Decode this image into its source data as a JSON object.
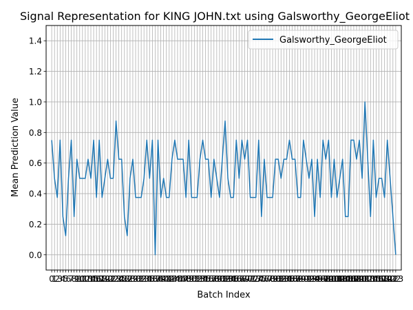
{
  "chart_data": {
    "type": "line",
    "title": "Signal Representation for KING JOHN.txt using Galsworthy_GeorgeEliot",
    "xlabel": "Batch Index",
    "ylabel": "Mean Prediction Value",
    "xlim": [
      -2,
      125
    ],
    "ylim": [
      -0.1,
      1.5
    ],
    "yticks": [
      0.0,
      0.2,
      0.4,
      0.6,
      0.8,
      1.0,
      1.2,
      1.4
    ],
    "ytick_labels": [
      "0.0",
      "0.2",
      "0.4",
      "0.6",
      "0.8",
      "1.0",
      "1.2",
      "1.4"
    ],
    "xtick_labels_visible": [
      "0",
      "1",
      "2",
      "3",
      "4",
      "5",
      "6",
      "7",
      "8",
      "9",
      "10",
      "11",
      "12",
      "13",
      "14",
      "15",
      "16",
      "17",
      "18",
      "19",
      "20",
      "21",
      "22",
      "23",
      "24",
      "25",
      "26",
      "27",
      "28",
      "29",
      "30",
      "31",
      "32",
      "33",
      "34",
      "35",
      "36",
      "37",
      "38",
      "39",
      "40",
      "41",
      "42",
      "43",
      "44",
      "45",
      "46",
      "47",
      "48",
      "49",
      "50",
      "51",
      "52",
      "53",
      "54",
      "55",
      "56",
      "57",
      "58",
      "59",
      "60",
      "61",
      "62",
      "63",
      "64",
      "65",
      "66",
      "67",
      "68",
      "69",
      "70",
      "71",
      "72",
      "73",
      "74",
      "75",
      "76",
      "77",
      "78",
      "79",
      "80",
      "81",
      "82",
      "83",
      "84",
      "85",
      "86",
      "87",
      "88",
      "89",
      "90",
      "91",
      "92",
      "93",
      "94",
      "95",
      "96",
      "97",
      "98",
      "99",
      "100",
      "101",
      "102",
      "103",
      "104",
      "105",
      "106",
      "107",
      "108",
      "109",
      "110",
      "111",
      "112",
      "113",
      "114",
      "115",
      "116",
      "117",
      "118",
      "119",
      "120",
      "121",
      "122",
      "123"
    ],
    "grid": true,
    "legend_position": "top-right",
    "series": [
      {
        "name": "Galsworthy_GeorgeEliot",
        "color": "#1f77b4",
        "x": [
          0,
          1,
          2,
          3,
          4,
          5,
          6,
          7,
          8,
          9,
          10,
          11,
          12,
          13,
          14,
          15,
          16,
          17,
          18,
          19,
          20,
          21,
          22,
          23,
          24,
          25,
          26,
          27,
          28,
          29,
          30,
          31,
          32,
          33,
          34,
          35,
          36,
          37,
          38,
          39,
          40,
          41,
          42,
          43,
          44,
          45,
          46,
          47,
          48,
          49,
          50,
          51,
          52,
          53,
          54,
          55,
          56,
          57,
          58,
          59,
          60,
          61,
          62,
          63,
          64,
          65,
          66,
          67,
          68,
          69,
          70,
          71,
          72,
          73,
          74,
          75,
          76,
          77,
          78,
          79,
          80,
          81,
          82,
          83,
          84,
          85,
          86,
          87,
          88,
          89,
          90,
          91,
          92,
          93,
          94,
          95,
          96,
          97,
          98,
          99,
          100,
          101,
          102,
          103,
          104,
          105,
          106,
          107,
          108,
          109,
          110,
          111,
          112,
          113,
          114,
          115,
          116,
          117,
          118,
          119,
          120,
          121,
          122,
          123
        ],
        "values": [
          0.75,
          0.5,
          0.375,
          0.75,
          0.25,
          0.125,
          0.5,
          0.75,
          0.25,
          0.625,
          0.5,
          0.5,
          0.5,
          0.625,
          0.5,
          0.75,
          0.375,
          0.75,
          0.375,
          0.5,
          0.625,
          0.5,
          0.5,
          0.875,
          0.625,
          0.625,
          0.25,
          0.125,
          0.5,
          0.625,
          0.375,
          0.375,
          0.375,
          0.5,
          0.75,
          0.5,
          0.75,
          0.0,
          0.75,
          0.375,
          0.5,
          0.375,
          0.375,
          0.625,
          0.75,
          0.625,
          0.625,
          0.625,
          0.375,
          0.75,
          0.375,
          0.375,
          0.375,
          0.625,
          0.75,
          0.625,
          0.625,
          0.375,
          0.625,
          0.5,
          0.375,
          0.625,
          0.875,
          0.5,
          0.375,
          0.375,
          0.75,
          0.5,
          0.75,
          0.625,
          0.75,
          0.375,
          0.375,
          0.375,
          0.75,
          0.25,
          0.625,
          0.375,
          0.375,
          0.375,
          0.625,
          0.625,
          0.5,
          0.625,
          0.625,
          0.75,
          0.625,
          0.625,
          0.375,
          0.375,
          0.75,
          0.625,
          0.5,
          0.625,
          0.25,
          0.625,
          0.375,
          0.75,
          0.625,
          0.75,
          0.375,
          0.625,
          0.375,
          0.5,
          0.625,
          0.25,
          0.25,
          0.75,
          0.75,
          0.625,
          0.75,
          0.5,
          1.0,
          0.625,
          0.25,
          0.75,
          0.375,
          0.5,
          0.5,
          0.375,
          0.75,
          0.5,
          0.25,
          0.0
        ]
      }
    ]
  }
}
